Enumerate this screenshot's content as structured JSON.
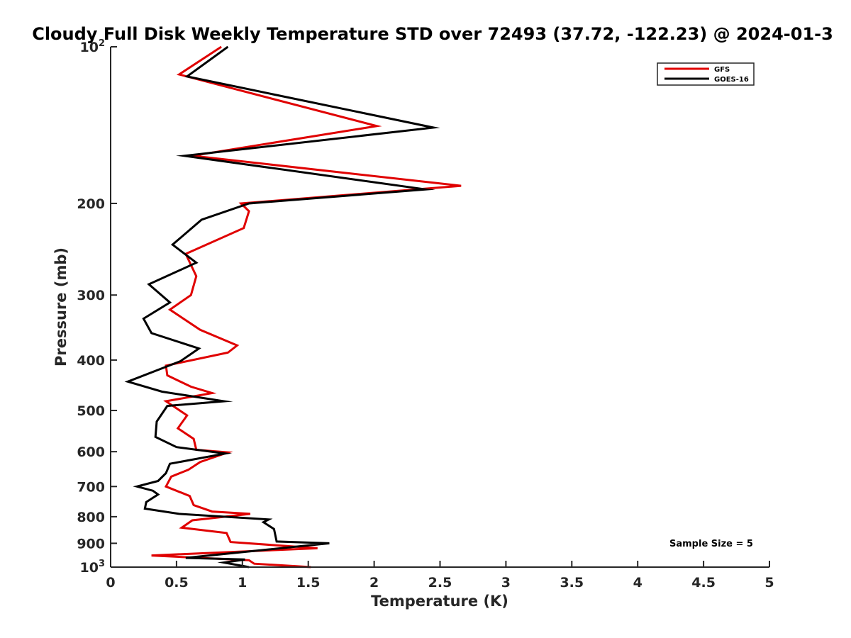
{
  "chart_data": {
    "type": "line",
    "title": "Cloudy Full Disk Weekly Temperature STD over 72493 (37.72, -122.23) @ 2024-01-3",
    "xlabel": "Temperature (K)",
    "ylabel": "Pressure (mb)",
    "xlim": [
      0,
      5
    ],
    "ylim": [
      100,
      1000
    ],
    "y_scale": "log",
    "y_reversed": true,
    "x_ticks": [
      {
        "value": 0,
        "label": "0"
      },
      {
        "value": 0.5,
        "label": "0.5"
      },
      {
        "value": 1,
        "label": "1"
      },
      {
        "value": 1.5,
        "label": "1.5"
      },
      {
        "value": 2,
        "label": "2"
      },
      {
        "value": 2.5,
        "label": "2.5"
      },
      {
        "value": 3,
        "label": "3"
      },
      {
        "value": 3.5,
        "label": "3.5"
      },
      {
        "value": 4,
        "label": "4"
      },
      {
        "value": 4.5,
        "label": "4.5"
      },
      {
        "value": 5,
        "label": "5"
      }
    ],
    "y_ticks": [
      {
        "value": 100,
        "base": "10",
        "exp": "2"
      },
      {
        "value": 200,
        "label": "200"
      },
      {
        "value": 300,
        "label": "300"
      },
      {
        "value": 400,
        "label": "400"
      },
      {
        "value": 500,
        "label": "500"
      },
      {
        "value": 600,
        "label": "600"
      },
      {
        "value": 700,
        "label": "700"
      },
      {
        "value": 800,
        "label": "800"
      },
      {
        "value": 900,
        "label": "900"
      },
      {
        "value": 1000,
        "base": "10",
        "exp": "3"
      }
    ],
    "grid": false,
    "legend_position": "top-right",
    "annotation": "Sample Size = 5",
    "series": [
      {
        "name": "GFS",
        "color": "#e00000",
        "points": [
          [
            0.84,
            100
          ],
          [
            0.52,
            113
          ],
          [
            2.02,
            142
          ],
          [
            0.62,
            162
          ],
          [
            2.66,
            185
          ],
          [
            0.99,
            200
          ],
          [
            1.05,
            207
          ],
          [
            1.01,
            223
          ],
          [
            0.57,
            250
          ],
          [
            0.65,
            276
          ],
          [
            0.61,
            300
          ],
          [
            0.45,
            320
          ],
          [
            0.68,
            350
          ],
          [
            0.96,
            375
          ],
          [
            0.89,
            387
          ],
          [
            0.42,
            410
          ],
          [
            0.43,
            428
          ],
          [
            0.61,
            450
          ],
          [
            0.77,
            463
          ],
          [
            0.42,
            480
          ],
          [
            0.58,
            511
          ],
          [
            0.51,
            541
          ],
          [
            0.63,
            567
          ],
          [
            0.65,
            595
          ],
          [
            0.89,
            602
          ],
          [
            0.68,
            628
          ],
          [
            0.59,
            650
          ],
          [
            0.46,
            670
          ],
          [
            0.42,
            700
          ],
          [
            0.6,
            730
          ],
          [
            0.63,
            760
          ],
          [
            0.77,
            782
          ],
          [
            1.06,
            790
          ],
          [
            0.62,
            813
          ],
          [
            0.54,
            840
          ],
          [
            0.88,
            860
          ],
          [
            0.91,
            895
          ],
          [
            1.57,
            920
          ],
          [
            0.31,
            950
          ],
          [
            1.05,
            970
          ],
          [
            1.09,
            985
          ],
          [
            1.52,
            1000
          ]
        ]
      },
      {
        "name": "GOES-16",
        "color": "#000000",
        "points": [
          [
            0.89,
            100
          ],
          [
            0.58,
            114
          ],
          [
            2.45,
            143
          ],
          [
            0.56,
            162
          ],
          [
            2.39,
            188
          ],
          [
            1.05,
            200
          ],
          [
            0.69,
            215
          ],
          [
            0.47,
            240
          ],
          [
            0.65,
            260
          ],
          [
            0.29,
            286
          ],
          [
            0.45,
            310
          ],
          [
            0.25,
            333
          ],
          [
            0.31,
            355
          ],
          [
            0.67,
            380
          ],
          [
            0.53,
            402
          ],
          [
            0.13,
            440
          ],
          [
            0.39,
            460
          ],
          [
            0.86,
            480
          ],
          [
            0.43,
            490
          ],
          [
            0.35,
            525
          ],
          [
            0.34,
            562
          ],
          [
            0.5,
            588
          ],
          [
            0.87,
            605
          ],
          [
            0.45,
            633
          ],
          [
            0.42,
            660
          ],
          [
            0.36,
            683
          ],
          [
            0.2,
            700
          ],
          [
            0.32,
            713
          ],
          [
            0.36,
            725
          ],
          [
            0.27,
            750
          ],
          [
            0.26,
            772
          ],
          [
            0.52,
            790
          ],
          [
            1.2,
            810
          ],
          [
            1.16,
            820
          ],
          [
            1.24,
            845
          ],
          [
            1.26,
            893
          ],
          [
            1.66,
            900
          ],
          [
            0.57,
            960
          ],
          [
            1.02,
            967
          ],
          [
            0.86,
            980
          ],
          [
            1.05,
            1000
          ]
        ]
      }
    ]
  }
}
